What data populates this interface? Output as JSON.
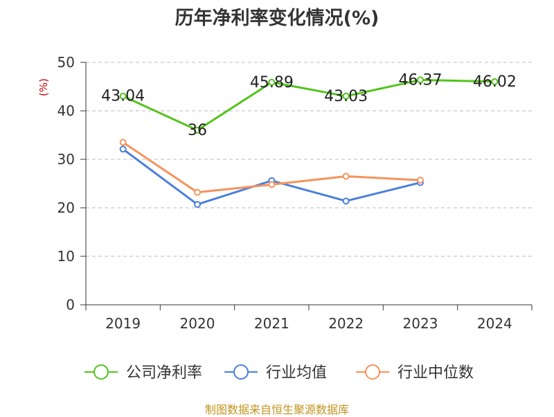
{
  "chart_data": {
    "type": "line",
    "title": "历年净利率变化情况(%)",
    "ylabel": "(%)",
    "xlabel": "",
    "categories": [
      "2019",
      "2020",
      "2021",
      "2022",
      "2023",
      "2024"
    ],
    "ylim": [
      0,
      50
    ],
    "yticks": [
      0,
      10,
      20,
      30,
      40,
      50
    ],
    "grid": true,
    "legend_position": "bottom",
    "series": [
      {
        "name": "公司净利率",
        "color": "#52c41a",
        "show_labels": true,
        "values": [
          43.04,
          36,
          45.89,
          43.03,
          46.37,
          46.02
        ],
        "labels": [
          "43.04",
          "36",
          "45.89",
          "43.03",
          "46.37",
          "46.02"
        ]
      },
      {
        "name": "行业均值",
        "color": "#4a7fdc",
        "show_labels": false,
        "values": [
          32.1,
          20.7,
          25.6,
          21.4,
          25.2,
          null
        ]
      },
      {
        "name": "行业中位数",
        "color": "#f5925a",
        "show_labels": false,
        "values": [
          33.5,
          23.2,
          24.8,
          26.5,
          25.7,
          null
        ]
      }
    ]
  },
  "footer": {
    "source": "制图数据来自恒生聚源数据库"
  },
  "colors": {
    "axis": "#333333",
    "grid": "#bbbbbb",
    "ylabel": "#cc0000",
    "source": "#c0941f"
  }
}
